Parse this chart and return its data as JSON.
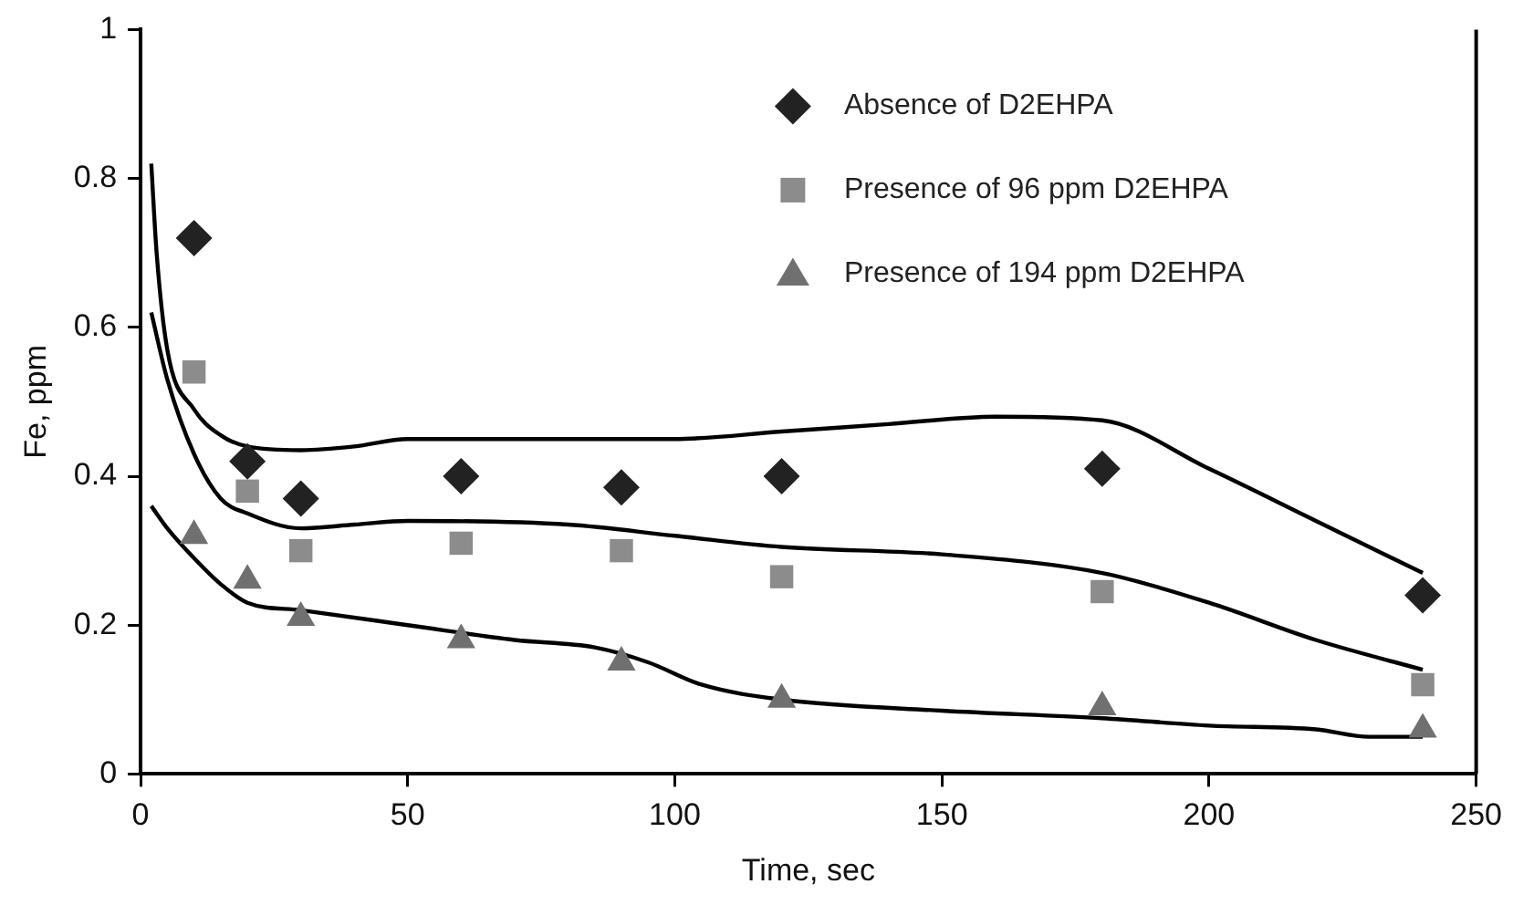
{
  "chart_data": {
    "type": "scatter",
    "xlabel": "Time, sec",
    "ylabel": "Fe, ppm",
    "xlim": [
      0,
      250
    ],
    "xticks": [
      0,
      50,
      100,
      150,
      200,
      250
    ],
    "ylim": [
      0,
      1
    ],
    "yticks": [
      0,
      {
        "value": 0.2,
        "label": "0.2"
      },
      {
        "value": 0.4,
        "label": "0.4"
      },
      {
        "value": 0.6,
        "label": "0.6"
      },
      {
        "value": 0.8,
        "label": "0.8"
      },
      1
    ],
    "grid": false,
    "legend": "top right",
    "series": [
      {
        "name": "Absence of D2EHPA",
        "type": "scatter",
        "marker": "diamond",
        "color": "#222222",
        "x": [
          10,
          20,
          30,
          60,
          90,
          120,
          180,
          240
        ],
        "values": [
          0.72,
          0.42,
          0.37,
          0.4,
          0.385,
          0.4,
          0.41,
          0.24
        ]
      },
      {
        "name": "Presence of 96 ppm D2EHPA",
        "type": "scatter",
        "marker": "square",
        "color": "#8c8c8c",
        "x": [
          10,
          20,
          30,
          60,
          90,
          120,
          180,
          240
        ],
        "values": [
          0.54,
          0.38,
          0.3,
          0.31,
          0.3,
          0.265,
          0.245,
          0.12
        ]
      },
      {
        "name": "Presence of 194 ppm D2EHPA",
        "type": "scatter",
        "marker": "triangle",
        "color": "#707070",
        "x": [
          10,
          20,
          30,
          60,
          90,
          120,
          180,
          240
        ],
        "values": [
          0.32,
          0.26,
          0.21,
          0.18,
          0.15,
          0.1,
          0.09,
          0.06
        ]
      },
      {
        "type": "line",
        "marker": "none",
        "color": "#000000",
        "x": [
          2,
          3,
          5,
          10,
          15,
          20,
          30,
          40,
          50,
          80,
          100,
          120,
          140,
          160,
          180,
          200,
          220,
          240
        ],
        "values": [
          0.82,
          0.7,
          0.57,
          0.49,
          0.455,
          0.44,
          0.435,
          0.44,
          0.45,
          0.45,
          0.45,
          0.46,
          0.47,
          0.48,
          0.475,
          0.41,
          0.34,
          0.27
        ]
      },
      {
        "type": "line",
        "marker": "none",
        "color": "#000000",
        "x": [
          2,
          5,
          10,
          15,
          20,
          30,
          40,
          50,
          80,
          100,
          120,
          150,
          180,
          200,
          220,
          240
        ],
        "values": [
          0.62,
          0.53,
          0.43,
          0.37,
          0.35,
          0.33,
          0.335,
          0.34,
          0.335,
          0.32,
          0.305,
          0.295,
          0.27,
          0.23,
          0.18,
          0.14
        ]
      },
      {
        "type": "line",
        "marker": "none",
        "color": "#000000",
        "x": [
          2,
          5,
          10,
          15,
          20,
          30,
          50,
          70,
          85,
          95,
          105,
          120,
          150,
          180,
          200,
          220,
          230,
          240
        ],
        "values": [
          0.36,
          0.33,
          0.29,
          0.255,
          0.23,
          0.22,
          0.2,
          0.18,
          0.17,
          0.15,
          0.12,
          0.1,
          0.085,
          0.075,
          0.065,
          0.06,
          0.05,
          0.05
        ]
      }
    ]
  }
}
